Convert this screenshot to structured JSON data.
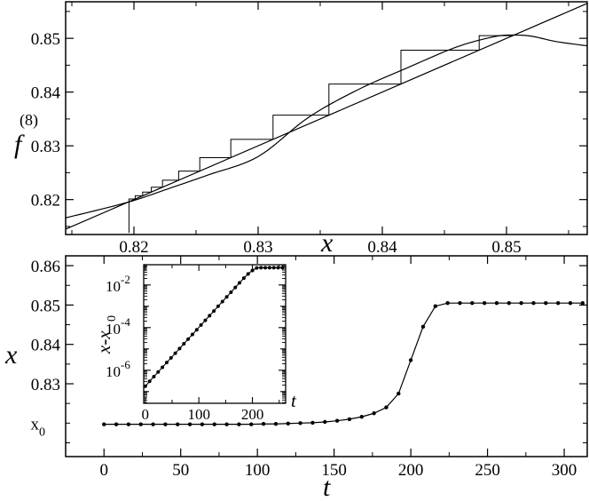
{
  "chart_data": [
    {
      "id": "top",
      "type": "line",
      "title": "",
      "xlabel": "x",
      "ylabel": "f",
      "ylabel_superscript": "(8)",
      "xlim": [
        0.8145,
        0.8565
      ],
      "ylim": [
        0.8135,
        0.8568
      ],
      "xticks": [
        0.82,
        0.83,
        0.84,
        0.85
      ],
      "xtick_labels": [
        "0.82",
        "0.83",
        "0.84",
        "0.85"
      ],
      "yticks": [
        0.82,
        0.83,
        0.84,
        0.85
      ],
      "ytick_labels": [
        "0.82",
        "0.83",
        "0.84",
        "0.85"
      ],
      "grid": false,
      "series": [
        {
          "role": "map-curve",
          "x": [
            0.8145,
            0.8195,
            0.823,
            0.826,
            0.83,
            0.834,
            0.838,
            0.842,
            0.846,
            0.849,
            0.8505,
            0.852,
            0.854,
            0.8565
          ],
          "y": [
            0.8166,
            0.8195,
            0.8222,
            0.8246,
            0.828,
            0.8352,
            0.8404,
            0.8445,
            0.8484,
            0.8503,
            0.8506,
            0.8504,
            0.8494,
            0.8486
          ]
        },
        {
          "role": "diagonal",
          "x": [
            0.8145,
            0.8565
          ],
          "y": [
            0.8145,
            0.8565
          ]
        },
        {
          "role": "cobweb",
          "x": [
            0.8196,
            0.8196,
            0.8201,
            0.8201,
            0.8207,
            0.8207,
            0.8214,
            0.8214,
            0.8223,
            0.8223,
            0.8236,
            0.8236,
            0.8253,
            0.8253,
            0.8278,
            0.8278,
            0.8312,
            0.8312,
            0.8357,
            0.8357,
            0.8415,
            0.8415,
            0.8478,
            0.8478,
            0.8505,
            0.8505
          ],
          "y": [
            0.8138,
            0.8201,
            0.8201,
            0.8207,
            0.8207,
            0.8214,
            0.8214,
            0.8223,
            0.8223,
            0.8236,
            0.8236,
            0.8253,
            0.8253,
            0.8278,
            0.8278,
            0.8312,
            0.8312,
            0.8357,
            0.8357,
            0.8415,
            0.8415,
            0.8478,
            0.8478,
            0.8505,
            0.8505,
            0.8507
          ]
        }
      ]
    },
    {
      "id": "bottom",
      "type": "line",
      "title": "",
      "xlabel": "t",
      "ylabel": "x",
      "xlim": [
        -25,
        315
      ],
      "ylim": [
        0.8115,
        0.8625
      ],
      "xticks": [
        0,
        50,
        100,
        150,
        200,
        250,
        300
      ],
      "xtick_labels": [
        "0",
        "50",
        "100",
        "150",
        "200",
        "250",
        "300"
      ],
      "yticks": [
        0.83,
        0.84,
        0.85,
        0.86
      ],
      "ytick_labels": [
        "0.83",
        "0.84",
        "0.85",
        "0.86"
      ],
      "extra_ytick": {
        "value": 0.8197,
        "label": "x",
        "subscript": "0"
      },
      "grid": false,
      "series": [
        {
          "name": "",
          "markers": true,
          "x": [
            0,
            8,
            16,
            24,
            32,
            40,
            48,
            56,
            64,
            72,
            80,
            88,
            96,
            104,
            112,
            120,
            128,
            136,
            144,
            152,
            160,
            168,
            176,
            184,
            192,
            200,
            208,
            216,
            224,
            232,
            240,
            248,
            256,
            264,
            272,
            280,
            288,
            296,
            304,
            312
          ],
          "y": [
            0.8197,
            0.8197,
            0.8197,
            0.8197,
            0.8197,
            0.8197,
            0.8197,
            0.8197,
            0.8197,
            0.8197,
            0.8197,
            0.8197,
            0.8197,
            0.8198,
            0.8198,
            0.8199,
            0.82,
            0.8201,
            0.8203,
            0.8206,
            0.821,
            0.8216,
            0.8225,
            0.824,
            0.8275,
            0.836,
            0.8445,
            0.8497,
            0.8505,
            0.8505,
            0.8505,
            0.8505,
            0.8505,
            0.8505,
            0.8505,
            0.8505,
            0.8505,
            0.8505,
            0.8505,
            0.8505
          ]
        }
      ]
    },
    {
      "id": "inset",
      "type": "line",
      "title": "",
      "xlabel": "t",
      "ylabel": "x-x",
      "ylabel_subscript": "0",
      "xlim": [
        -3,
        262
      ],
      "ylog": true,
      "ylim_log10": [
        -7.55,
        -1.05
      ],
      "xticks": [
        0,
        100,
        200
      ],
      "xtick_labels": [
        "0",
        "100",
        "200"
      ],
      "yticks_log10": [
        -6,
        -4,
        -2
      ],
      "ytick_labels": [
        {
          "base": "10",
          "exp": "-6"
        },
        {
          "base": "10",
          "exp": "-4"
        },
        {
          "base": "10",
          "exp": "-2"
        }
      ],
      "grid": false,
      "series": [
        {
          "name": "",
          "markers": true,
          "x": [
            0,
            8,
            16,
            24,
            32,
            40,
            48,
            56,
            64,
            72,
            80,
            88,
            96,
            104,
            112,
            120,
            128,
            136,
            144,
            152,
            160,
            168,
            176,
            184,
            192,
            200,
            208,
            216,
            224,
            232,
            240,
            248,
            256
          ],
          "log10_y": [
            -6.75,
            -6.52,
            -6.3,
            -6.08,
            -5.86,
            -5.64,
            -5.42,
            -5.2,
            -4.98,
            -4.76,
            -4.54,
            -4.32,
            -4.1,
            -3.88,
            -3.66,
            -3.44,
            -3.22,
            -3.0,
            -2.78,
            -2.56,
            -2.34,
            -2.12,
            -1.9,
            -1.68,
            -1.48,
            -1.32,
            -1.2,
            -1.19,
            -1.19,
            -1.19,
            -1.19,
            -1.19,
            -1.19
          ]
        }
      ]
    }
  ]
}
